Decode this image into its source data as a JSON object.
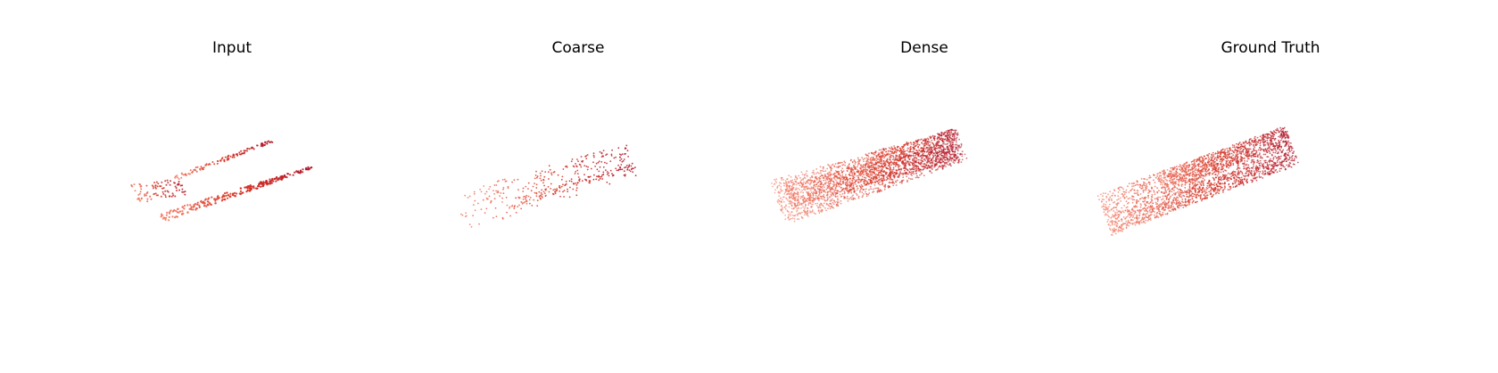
{
  "panels": [
    {
      "title": "Input"
    },
    {
      "title": "Coarse"
    },
    {
      "title": "Dense"
    },
    {
      "title": "Ground Truth"
    }
  ],
  "colors": {
    "dark": "#b2182b",
    "mid": "#d7301f",
    "light": "#f4806a"
  }
}
